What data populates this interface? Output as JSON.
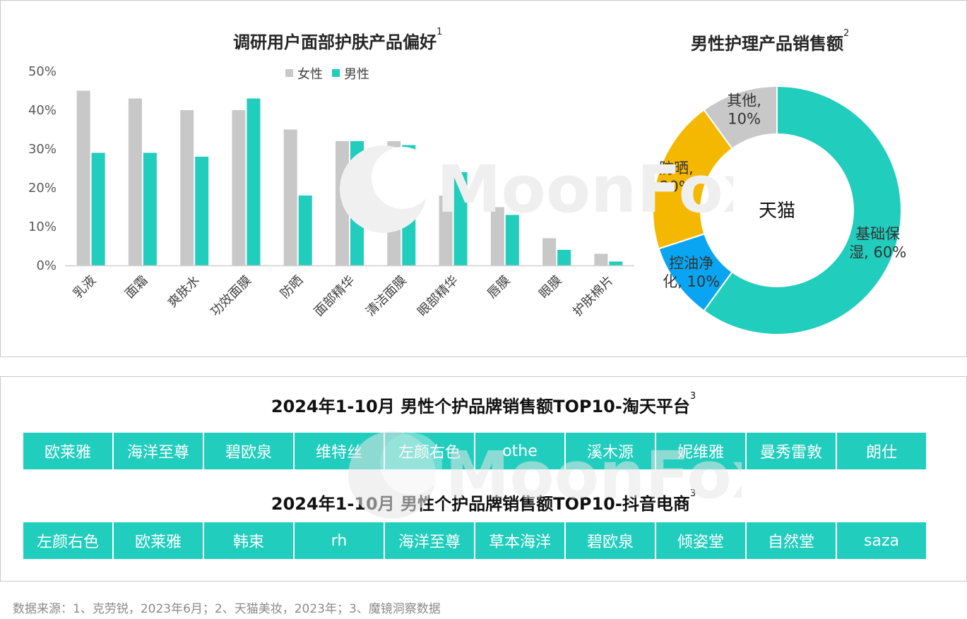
{
  "colors": {
    "female": "#c8c8c8",
    "male": "#21cdbd",
    "donut_main": "#21cdbd",
    "donut_blue": "#0aa5f2",
    "donut_yellow": "#f5b800",
    "donut_gray": "#c8c8c8"
  },
  "chart_data": [
    {
      "type": "bar",
      "title": "调研用户面部护肤产品偏好",
      "title_note": "1",
      "categories": [
        "乳液",
        "面霜",
        "爽肤水",
        "功效面膜",
        "防晒",
        "面部精华",
        "清洁面膜",
        "眼部精华",
        "唇膜",
        "眼膜",
        "护肤棉片"
      ],
      "series": [
        {
          "name": "女性",
          "values": [
            45,
            43,
            40,
            40,
            35,
            32,
            32,
            18,
            15,
            7,
            3
          ]
        },
        {
          "name": "男性",
          "values": [
            29,
            29,
            28,
            43,
            18,
            32,
            31,
            24,
            13,
            4,
            1
          ]
        }
      ],
      "yticks": [
        "0%",
        "10%",
        "20%",
        "30%",
        "40%",
        "50%"
      ],
      "ylim": [
        0,
        50
      ],
      "legend_position": "top"
    },
    {
      "type": "pie",
      "title": "男性护理产品销售额",
      "title_note": "2",
      "center_label": "天猫",
      "slices": [
        {
          "label": "基础保湿, 60%",
          "label_lines": [
            "基础保",
            "湿, 60%"
          ],
          "value": 60
        },
        {
          "label": "控油净化, 10%",
          "label_lines": [
            "控油净",
            "化, 10%"
          ],
          "value": 10
        },
        {
          "label": "防晒, 20%",
          "label_lines": [
            "防晒,",
            "20%"
          ],
          "value": 20
        },
        {
          "label": "其他, 10%",
          "label_lines": [
            "其他,",
            "10%"
          ],
          "value": 10
        }
      ]
    }
  ],
  "brands": {
    "taotian_title": "2024年1-10月 男性个护品牌销售额TOP10-淘天平台",
    "taotian_note": "3",
    "taotian": [
      "欧莱雅",
      "海洋至尊",
      "碧欧泉",
      "维特丝",
      "左颜右色",
      "othe",
      "溪木源",
      "妮维雅",
      "曼秀雷敦",
      "朗仕"
    ],
    "douyin_title": "2024年1-10月 男性个护品牌销售额TOP10-抖音电商",
    "douyin_note": "3",
    "douyin": [
      "左颜右色",
      "欧莱雅",
      "韩束",
      "rh",
      "海洋至尊",
      "草本海洋",
      "碧欧泉",
      "倾姿堂",
      "自然堂",
      "saza"
    ]
  },
  "watermark": "MoonFox",
  "footnote": "数据来源：1、克劳锐，2023年6月；2、天猫美妆，2023年；3、魔镜洞察数据"
}
